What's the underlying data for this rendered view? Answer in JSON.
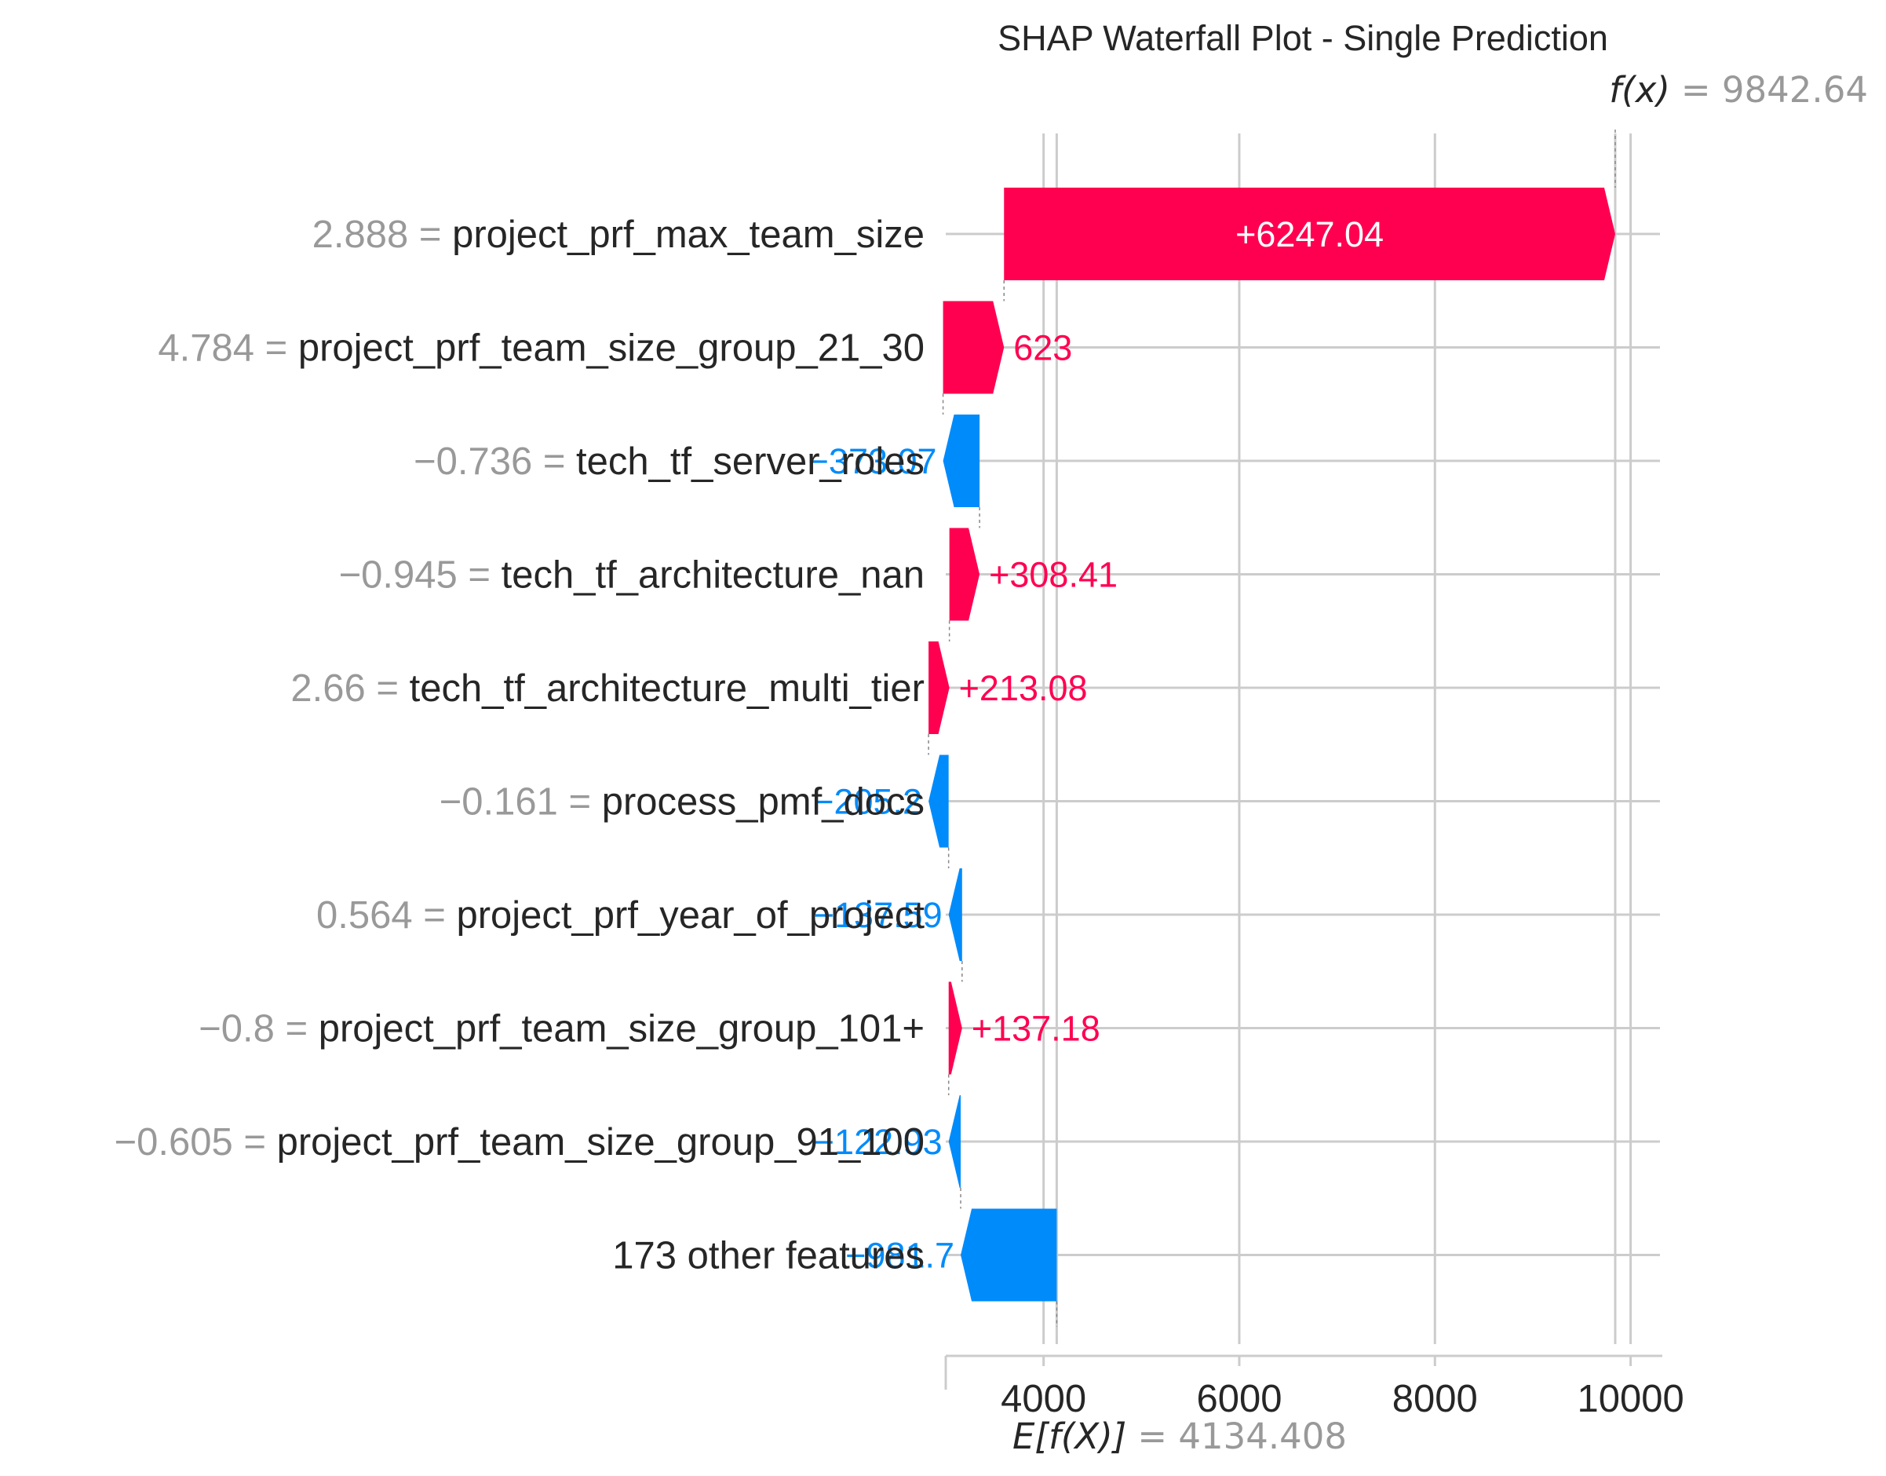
{
  "chart_data": {
    "type": "bar",
    "title": "SHAP Waterfall Plot - Single Prediction",
    "base_value": 4134.408,
    "base_value_label": "E[f(X)]",
    "base_value_text": "= 4134.408",
    "final_value": 9842.64,
    "final_value_label": "f(x)",
    "final_value_text": "= 9842.64",
    "xlim": [
      3000,
      10300
    ],
    "x_ticks": [
      4000,
      6000,
      8000,
      10000
    ],
    "grid": true,
    "features": [
      {
        "value_text": "2.888 =",
        "name": "project_prf_max_team_size",
        "shap": 6247.04,
        "label": "+6247.04"
      },
      {
        "value_text": "4.784 =",
        "name": "project_prf_team_size_group_21_30",
        "shap": 623.0,
        "label": "623"
      },
      {
        "value_text": "−0.736 =",
        "name": "tech_tf_server_roles",
        "shap": -373.07,
        "label": "−373.07"
      },
      {
        "value_text": "−0.945 =",
        "name": "tech_tf_architecture_nan",
        "shap": 308.41,
        "label": "+308.41"
      },
      {
        "value_text": "2.66 =",
        "name": "tech_tf_architecture_multi_tier",
        "shap": 213.08,
        "label": "+213.08"
      },
      {
        "value_text": "−0.161 =",
        "name": "process_pmf_docs",
        "shap": -205.2,
        "label": "−205.2"
      },
      {
        "value_text": "0.564 =",
        "name": "project_prf_year_of_project",
        "shap": -137.59,
        "label": "−137.59"
      },
      {
        "value_text": "−0.8 =",
        "name": "project_prf_team_size_group_101+",
        "shap": 137.18,
        "label": "+137.18"
      },
      {
        "value_text": "−0.605 =",
        "name": "project_prf_team_size_group_91_100",
        "shap": -122.93,
        "label": "−122.93"
      },
      {
        "value_text": "",
        "name": "173 other features",
        "shap": -981.7,
        "label": "−981.7"
      }
    ],
    "colors": {
      "positive": "#ff0051",
      "negative": "#008bfb",
      "grid": "#cccccc",
      "text": "#262626",
      "muted": "#999999",
      "bar_text": "#ffffff"
    }
  }
}
